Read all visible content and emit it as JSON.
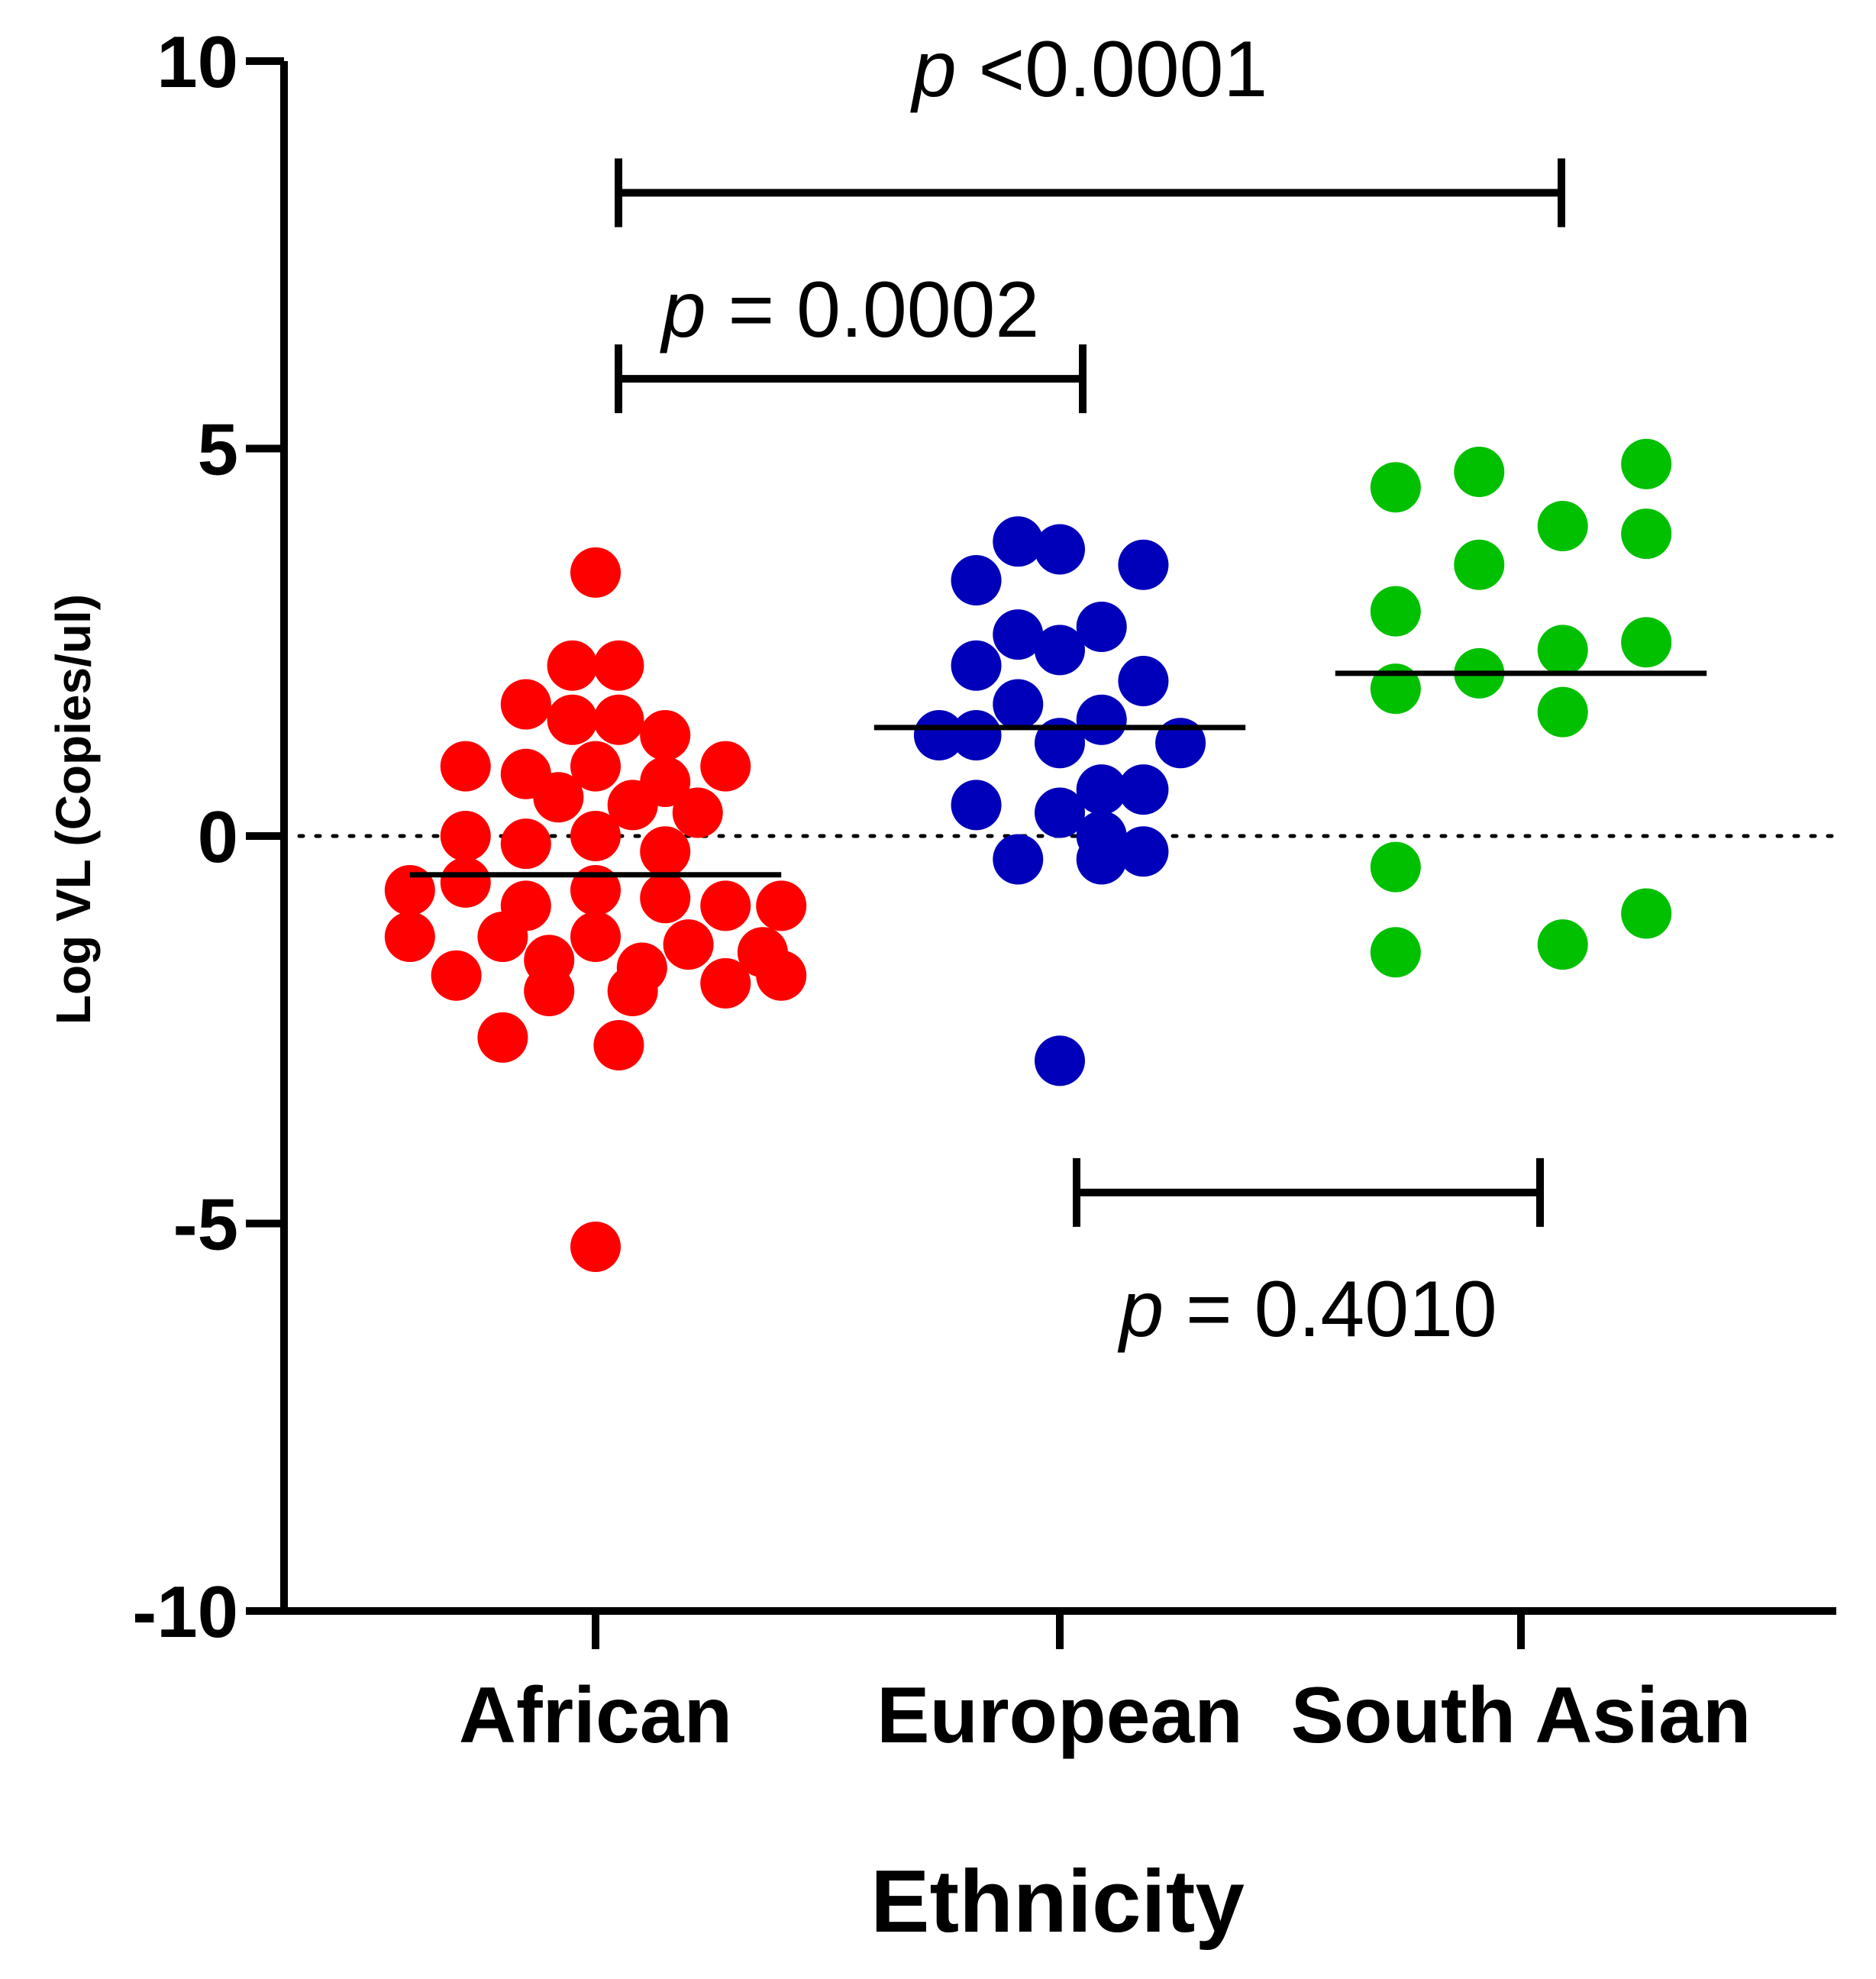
{
  "chart_data": {
    "type": "scatter",
    "xlabel": "Ethnicity",
    "ylabel": "Log VL (Copies/ul)",
    "ylim": [
      -10,
      10
    ],
    "yticks": [
      10,
      5,
      0,
      -5,
      -10
    ],
    "ytick_labels": [
      "10",
      "5",
      "0",
      "-5",
      "-10"
    ],
    "categories": [
      "African",
      "European",
      "South Asian"
    ],
    "reference_line": {
      "y": 0,
      "style": "dotted"
    },
    "series": [
      {
        "category": "African",
        "color": "#ff0000",
        "mean": -0.5,
        "points": [
          {
            "dx": 0.0,
            "y": 3.4
          },
          {
            "dx": -0.05,
            "y": 2.2
          },
          {
            "dx": 0.05,
            "y": 2.2
          },
          {
            "dx": -0.15,
            "y": 1.7
          },
          {
            "dx": -0.05,
            "y": 1.5
          },
          {
            "dx": 0.05,
            "y": 1.5
          },
          {
            "dx": 0.15,
            "y": 1.3
          },
          {
            "dx": -0.28,
            "y": 0.9
          },
          {
            "dx": -0.15,
            "y": 0.8
          },
          {
            "dx": 0.0,
            "y": 0.9
          },
          {
            "dx": 0.15,
            "y": 0.7
          },
          {
            "dx": 0.28,
            "y": 0.9
          },
          {
            "dx": -0.08,
            "y": 0.5
          },
          {
            "dx": 0.08,
            "y": 0.4
          },
          {
            "dx": 0.22,
            "y": 0.3
          },
          {
            "dx": -0.28,
            "y": 0.0
          },
          {
            "dx": -0.15,
            "y": -0.1
          },
          {
            "dx": 0.0,
            "y": 0.0
          },
          {
            "dx": 0.15,
            "y": -0.2
          },
          {
            "dx": -0.4,
            "y": -0.7
          },
          {
            "dx": -0.28,
            "y": -0.6
          },
          {
            "dx": -0.15,
            "y": -0.9
          },
          {
            "dx": 0.0,
            "y": -0.7
          },
          {
            "dx": 0.15,
            "y": -0.8
          },
          {
            "dx": 0.28,
            "y": -0.9
          },
          {
            "dx": 0.4,
            "y": -0.9
          },
          {
            "dx": -0.4,
            "y": -1.3
          },
          {
            "dx": -0.2,
            "y": -1.3
          },
          {
            "dx": 0.0,
            "y": -1.3
          },
          {
            "dx": 0.2,
            "y": -1.4
          },
          {
            "dx": 0.36,
            "y": -1.5
          },
          {
            "dx": -0.3,
            "y": -1.8
          },
          {
            "dx": -0.1,
            "y": -1.6
          },
          {
            "dx": 0.1,
            "y": -1.7
          },
          {
            "dx": 0.28,
            "y": -1.9
          },
          {
            "dx": -0.1,
            "y": -2.0
          },
          {
            "dx": 0.08,
            "y": -2.0
          },
          {
            "dx": 0.4,
            "y": -1.8
          },
          {
            "dx": -0.2,
            "y": -2.6
          },
          {
            "dx": 0.05,
            "y": -2.7
          },
          {
            "dx": 0.0,
            "y": -5.3
          }
        ]
      },
      {
        "category": "European",
        "color": "#0000bb",
        "mean": 1.4,
        "points": [
          {
            "dx": -0.09,
            "y": 3.8
          },
          {
            "dx": 0.0,
            "y": 3.7
          },
          {
            "dx": 0.18,
            "y": 3.5
          },
          {
            "dx": -0.18,
            "y": 3.3
          },
          {
            "dx": -0.09,
            "y": 2.6
          },
          {
            "dx": 0.09,
            "y": 2.7
          },
          {
            "dx": 0.0,
            "y": 2.4
          },
          {
            "dx": -0.18,
            "y": 2.2
          },
          {
            "dx": 0.18,
            "y": 2.0
          },
          {
            "dx": -0.09,
            "y": 1.7
          },
          {
            "dx": 0.09,
            "y": 1.5
          },
          {
            "dx": -0.26,
            "y": 1.3
          },
          {
            "dx": -0.18,
            "y": 1.3
          },
          {
            "dx": 0.0,
            "y": 1.2
          },
          {
            "dx": 0.26,
            "y": 1.2
          },
          {
            "dx": 0.09,
            "y": 0.6
          },
          {
            "dx": 0.18,
            "y": 0.6
          },
          {
            "dx": -0.18,
            "y": 0.4
          },
          {
            "dx": 0.0,
            "y": 0.3
          },
          {
            "dx": 0.09,
            "y": 0.0
          },
          {
            "dx": -0.09,
            "y": -0.3
          },
          {
            "dx": 0.09,
            "y": -0.3
          },
          {
            "dx": 0.18,
            "y": -0.2
          },
          {
            "dx": 0.0,
            "y": -2.9
          }
        ]
      },
      {
        "category": "South Asian",
        "color": "#00c000",
        "mean": 2.1,
        "points": [
          {
            "dx": 0.27,
            "y": 4.8
          },
          {
            "dx": -0.09,
            "y": 4.7
          },
          {
            "dx": -0.27,
            "y": 4.5
          },
          {
            "dx": 0.09,
            "y": 4.0
          },
          {
            "dx": 0.27,
            "y": 3.9
          },
          {
            "dx": -0.09,
            "y": 3.5
          },
          {
            "dx": -0.27,
            "y": 2.9
          },
          {
            "dx": 0.27,
            "y": 2.5
          },
          {
            "dx": 0.09,
            "y": 2.4
          },
          {
            "dx": -0.09,
            "y": 2.1
          },
          {
            "dx": -0.27,
            "y": 1.9
          },
          {
            "dx": 0.09,
            "y": 1.6
          },
          {
            "dx": -0.27,
            "y": -0.4
          },
          {
            "dx": 0.27,
            "y": -1.0
          },
          {
            "dx": 0.09,
            "y": -1.4
          },
          {
            "dx": -0.27,
            "y": -1.5
          }
        ]
      }
    ],
    "comparisons": [
      {
        "from": "African",
        "to": "South Asian",
        "y": 8.3,
        "italic": "p",
        "rest": " <0.0001",
        "label_y": 9.9,
        "label_pos": "above"
      },
      {
        "from": "African",
        "to": "European",
        "y": 5.9,
        "italic": "p",
        "rest": " = 0.0002",
        "label_y": 6.8,
        "label_pos": "above"
      },
      {
        "from": "European",
        "to": "South Asian",
        "y": -4.6,
        "italic": "p",
        "rest": " = 0.4010",
        "label_y": -6.1,
        "label_pos": "below"
      }
    ]
  }
}
